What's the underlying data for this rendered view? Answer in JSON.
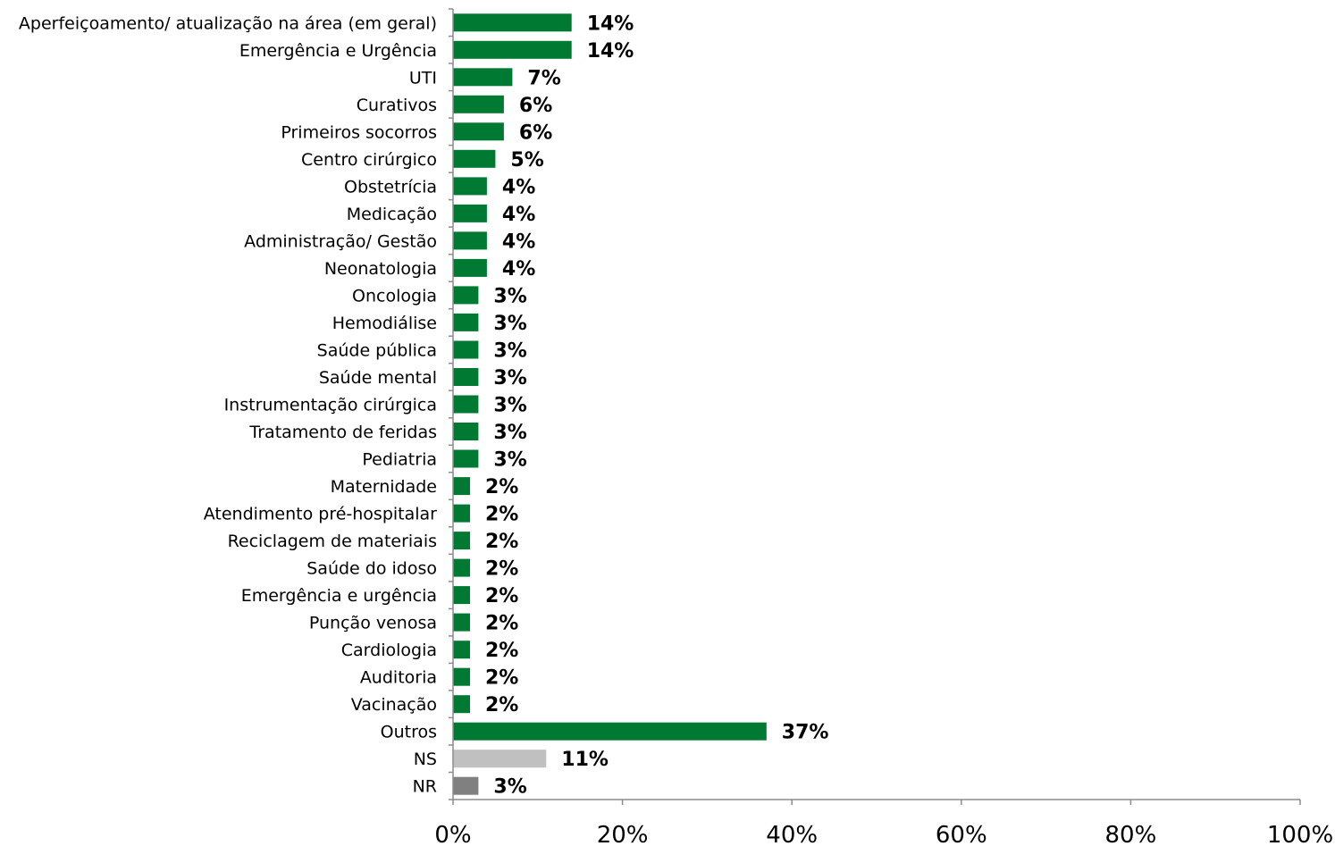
{
  "chart_data": {
    "type": "bar",
    "orientation": "horizontal",
    "categories": [
      "Aperfeiçoamento/ atualização na área (em geral)",
      "Emergência e Urgência",
      "UTI",
      "Curativos",
      "Primeiros socorros",
      "Centro cirúrgico",
      "Obstetrícia",
      "Medicação",
      "Administração/ Gestão",
      "Neonatologia",
      "Oncologia",
      "Hemodiálise",
      "Saúde pública",
      "Saúde mental",
      "Instrumentação cirúrgica",
      "Tratamento de feridas",
      "Pediatria",
      "Maternidade",
      "Atendimento pré-hospitalar",
      "Reciclagem de materiais",
      "Saúde do idoso",
      "Emergência e urgência",
      "Punção venosa",
      "Cardiologia",
      "Auditoria",
      "Vacinação",
      "Outros",
      "NS",
      "NR"
    ],
    "values": [
      14,
      14,
      7,
      6,
      6,
      5,
      4,
      4,
      4,
      4,
      3,
      3,
      3,
      3,
      3,
      3,
      3,
      2,
      2,
      2,
      2,
      2,
      2,
      2,
      2,
      2,
      37,
      11,
      3
    ],
    "value_labels": [
      "14%",
      "14%",
      "7%",
      "6%",
      "6%",
      "5%",
      "4%",
      "4%",
      "4%",
      "4%",
      "3%",
      "3%",
      "3%",
      "3%",
      "3%",
      "3%",
      "3%",
      "2%",
      "2%",
      "2%",
      "2%",
      "2%",
      "2%",
      "2%",
      "2%",
      "2%",
      "37%",
      "11%",
      "3%"
    ],
    "colors": [
      "#007a33",
      "#007a33",
      "#007a33",
      "#007a33",
      "#007a33",
      "#007a33",
      "#007a33",
      "#007a33",
      "#007a33",
      "#007a33",
      "#007a33",
      "#007a33",
      "#007a33",
      "#007a33",
      "#007a33",
      "#007a33",
      "#007a33",
      "#007a33",
      "#007a33",
      "#007a33",
      "#007a33",
      "#007a33",
      "#007a33",
      "#007a33",
      "#007a33",
      "#007a33",
      "#007a33",
      "#c0c0c0",
      "#808080"
    ],
    "xlim": [
      0,
      100
    ],
    "x_ticks": [
      0,
      20,
      40,
      60,
      80,
      100
    ],
    "x_tick_labels": [
      "0%",
      "20%",
      "40%",
      "60%",
      "80%",
      "100%"
    ],
    "grid": false,
    "legend": "none"
  }
}
